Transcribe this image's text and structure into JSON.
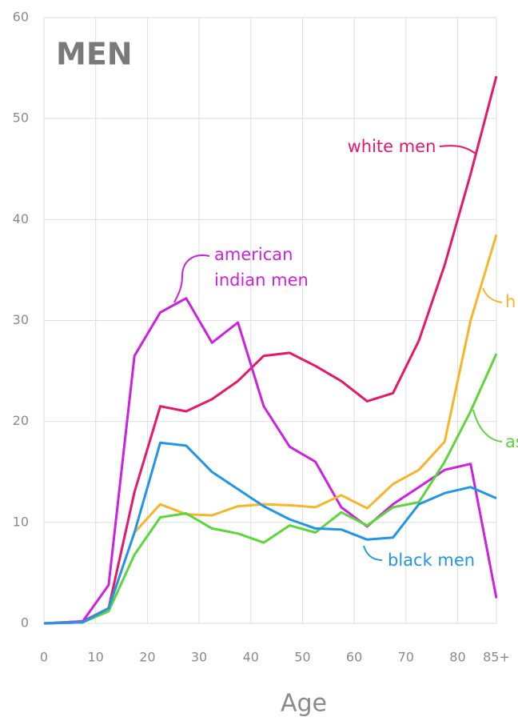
{
  "chart_data": {
    "type": "line",
    "title": "MEN",
    "xlabel": "Age",
    "x": [
      0,
      7.5,
      12.5,
      17.5,
      22.5,
      27.5,
      32.5,
      37.5,
      42.5,
      47.5,
      52.5,
      57.5,
      62.5,
      67.5,
      72.5,
      77.5,
      82.5,
      87.5
    ],
    "xlim": [
      0,
      87.5
    ],
    "xticks": [
      0,
      10,
      20,
      30,
      40,
      50,
      60,
      70,
      80,
      {
        "value": 87.5,
        "label": "85+"
      }
    ],
    "ylim": [
      0,
      60
    ],
    "yticks": [
      0,
      10,
      20,
      30,
      40,
      50,
      60
    ],
    "grid": true,
    "series": [
      {
        "name": "white men",
        "color": "#e8176a",
        "values": [
          0,
          0.2,
          1.5,
          13,
          21.5,
          21,
          22.2,
          24,
          26.5,
          26.8,
          25.5,
          24,
          22,
          22.8,
          28,
          35.5,
          44.5,
          54.2
        ]
      },
      {
        "name": "american indian men",
        "color": "#cc22e0",
        "values": [
          0,
          0.2,
          3.8,
          26.5,
          30.8,
          32.2,
          27.8,
          29.8,
          21.5,
          17.5,
          16,
          11.5,
          9.6,
          11.8,
          13.5,
          15.2,
          15.8,
          2.5
        ]
      },
      {
        "name": "h",
        "color": "#f6b52a",
        "values": [
          0,
          0.1,
          1.5,
          9,
          11.8,
          10.8,
          10.7,
          11.6,
          11.8,
          11.7,
          11.5,
          12.7,
          11.4,
          13.8,
          15.2,
          18,
          30,
          38.5
        ]
      },
      {
        "name": "as",
        "color": "#5cd63a",
        "values": [
          0,
          0.1,
          1.2,
          6.8,
          10.5,
          10.9,
          9.4,
          8.9,
          8,
          9.7,
          9,
          11,
          9.7,
          11.5,
          12,
          16,
          21,
          26.7
        ]
      },
      {
        "name": "black men",
        "color": "#2196e8",
        "values": [
          0,
          0.1,
          1.5,
          9,
          17.9,
          17.6,
          15,
          13.3,
          11.6,
          10.3,
          9.4,
          9.3,
          8.3,
          8.5,
          11.8,
          12.9,
          13.5,
          12.4
        ]
      }
    ]
  }
}
